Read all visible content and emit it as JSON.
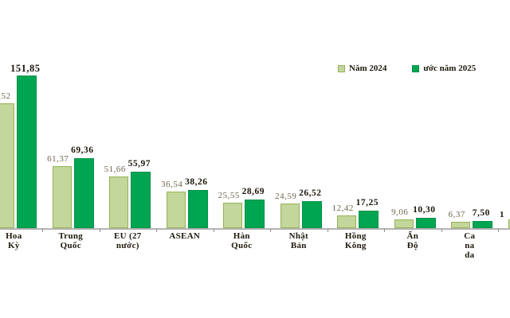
{
  "chart_data": {
    "type": "bar",
    "title": "",
    "xlabel": "",
    "ylabel": "",
    "ylim": [
      0,
      160
    ],
    "grid": false,
    "y_axis_visible": false,
    "legend_position": "top-right",
    "decimal_style": "comma",
    "categories": [
      "Hoa Kỳ",
      "Trung Quốc",
      "EU (27 nước)",
      "ASEAN",
      "Hàn Quốc",
      "Nhật Bản",
      "Hồng Kông",
      "Ấn Độ",
      "Ca na da"
    ],
    "category_label_lines": [
      [
        "Hoa",
        "Kỳ"
      ],
      [
        "Trung",
        "Quốc"
      ],
      [
        "EU (27",
        "nước)"
      ],
      [
        "ASEAN"
      ],
      [
        "Hàn",
        "Quốc"
      ],
      [
        "Nhật",
        "Bản"
      ],
      [
        "Hồng",
        "Kông"
      ],
      [
        "Ấn",
        "Độ"
      ],
      [
        "Ca",
        "na",
        "da"
      ]
    ],
    "series": [
      {
        "name": "Năm 2024",
        "color": "#c3d69b",
        "border_color": "#94b454",
        "label_color": "#6f6550",
        "label_bold": false,
        "values": [
          124.52,
          61.37,
          51.66,
          36.54,
          25.55,
          24.59,
          12.42,
          9.06,
          6.37
        ],
        "value_labels": [
          ",52",
          "61,37",
          "51,66",
          "36,54",
          "25,55",
          "24,59",
          "12,42",
          "9,06",
          "6,37"
        ]
      },
      {
        "name": "ước năm 2025",
        "color": "#00a551",
        "border_color": "#00914a",
        "label_color": "#1c150a",
        "label_bold": true,
        "values": [
          151.85,
          69.36,
          55.97,
          38.26,
          28.69,
          26.52,
          17.25,
          10.3,
          7.5
        ],
        "value_labels": [
          "151,85",
          "69,36",
          "55,97",
          "38,26",
          "28,69",
          "26,52",
          "17,25",
          "10,30",
          "7,50"
        ]
      }
    ],
    "clipped_edges": {
      "left_first_2024_label_visible_part": ",52",
      "right_next_category_partial": {
        "estimated_2024_value": 8.7,
        "label_fragment": "1"
      }
    }
  },
  "legend": {
    "item_2024": "Năm 2024",
    "item_2025": "ước năm 2025"
  }
}
